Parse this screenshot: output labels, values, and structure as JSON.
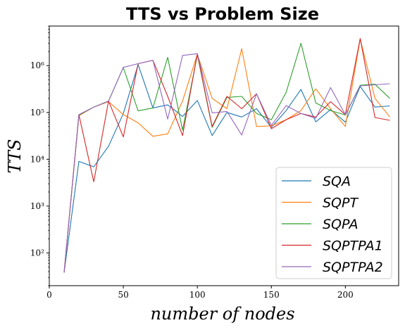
{
  "chart_data": {
    "type": "line",
    "title": "TTS vs Problem Size",
    "xlabel": "number of nodes",
    "ylabel": "TTS",
    "xlim": [
      0,
      236
    ],
    "ylim": [
      20,
      7000000
    ],
    "yscale": "log",
    "grid": false,
    "legend_position": "lower-right",
    "x_ticks": [
      0,
      50,
      100,
      150,
      200
    ],
    "x_tick_labels": [
      "0",
      "50",
      "100",
      "150",
      "200"
    ],
    "y_ticks": [
      100,
      1000,
      10000,
      100000,
      1000000
    ],
    "y_tick_labels": [
      "10²",
      "10³",
      "10⁴",
      "10⁵",
      "10⁶"
    ],
    "x": [
      10,
      20,
      30,
      40,
      50,
      60,
      70,
      80,
      90,
      100,
      110,
      120,
      130,
      140,
      150,
      160,
      170,
      180,
      190,
      200,
      210,
      220,
      230
    ],
    "series": [
      {
        "name": "SQA",
        "color": "#1f77b4",
        "values": [
          38,
          9000,
          6900,
          19000,
          95000,
          1050000,
          125000,
          145000,
          82000,
          180000,
          32000,
          100000,
          80000,
          120000,
          48000,
          110000,
          310000,
          63000,
          115000,
          62000,
          360000,
          130000,
          138000
        ]
      },
      {
        "name": "SQPT",
        "color": "#ff7f0e",
        "values": [
          38,
          85000,
          130000,
          170000,
          90000,
          60000,
          31000,
          35000,
          175000,
          1750000,
          200000,
          120000,
          2300000,
          50000,
          52000,
          70000,
          110000,
          320000,
          120000,
          50000,
          3700000,
          200000,
          80000
        ]
      },
      {
        "name": "SQPA",
        "color": "#2ca02c",
        "values": [
          38,
          88000,
          130000,
          175000,
          910000,
          108000,
          125000,
          1500000,
          42000,
          1700000,
          48000,
          210000,
          220000,
          95000,
          70000,
          270000,
          3000000,
          160000,
          110000,
          88000,
          380000,
          400000,
          200000
        ]
      },
      {
        "name": "SQPTPA1",
        "color": "#d62728",
        "values": [
          38,
          90000,
          3300,
          175000,
          30000,
          1100000,
          1300000,
          220000,
          32000,
          1800000,
          50000,
          220000,
          120000,
          250000,
          45000,
          70000,
          95000,
          80000,
          170000,
          90000,
          3800000,
          78000,
          68000
        ]
      },
      {
        "name": "SQPTPA2",
        "color": "#9467bd",
        "values": [
          38,
          90000,
          130000,
          175000,
          920000,
          1100000,
          1300000,
          72000,
          1650000,
          1800000,
          98000,
          105000,
          33000,
          250000,
          53000,
          140000,
          95000,
          75000,
          340000,
          90000,
          370000,
          390000,
          410000
        ]
      }
    ]
  }
}
